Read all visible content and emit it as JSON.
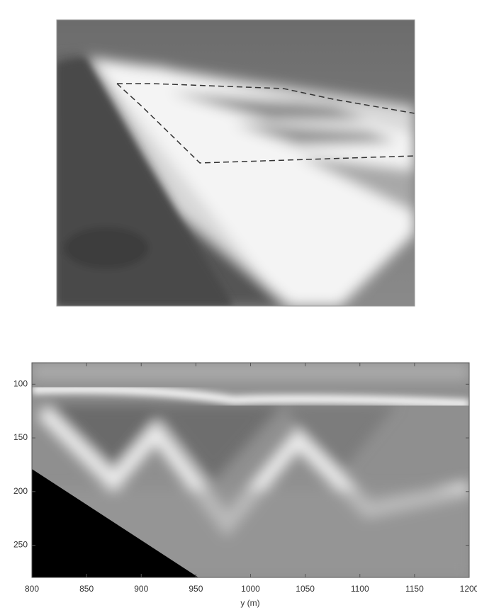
{
  "figure": {
    "panel_b": {
      "xlabel": "y (m)",
      "xlim": [
        800,
        1200
      ],
      "xticks": [
        800,
        850,
        900,
        950,
        1000,
        1050,
        1100,
        1150,
        1200
      ],
      "ylim": [
        80,
        280
      ],
      "yticks": [
        100,
        150,
        200,
        250
      ]
    }
  }
}
